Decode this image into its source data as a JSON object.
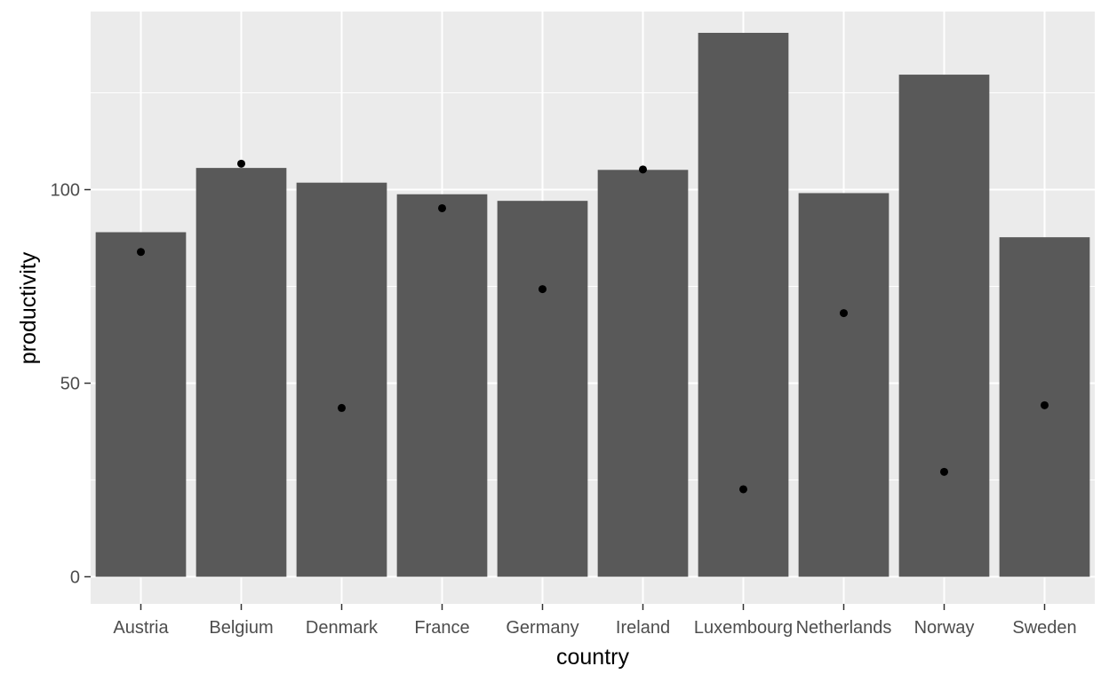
{
  "chart_data": {
    "type": "bar",
    "xlabel": "country",
    "ylabel": "productivity",
    "categories": [
      "Austria",
      "Belgium",
      "Denmark",
      "France",
      "Germany",
      "Ireland",
      "Luxembourg",
      "Netherlands",
      "Norway",
      "Sweden"
    ],
    "values": [
      89,
      105.6,
      101.8,
      98.8,
      97.1,
      105.1,
      140.5,
      99.1,
      129.7,
      87.7
    ],
    "points": [
      83.9,
      106.7,
      43.6,
      95.2,
      74.3,
      105.2,
      22.6,
      68.1,
      27.1,
      44.3
    ],
    "ylim": [
      -7,
      146
    ],
    "yticks": [
      0,
      50,
      100
    ],
    "grid": true,
    "legend": "none",
    "colors": {
      "panel": "#ebebeb",
      "grid": "#ffffff",
      "bar": "#595959",
      "point": "#000000"
    }
  }
}
